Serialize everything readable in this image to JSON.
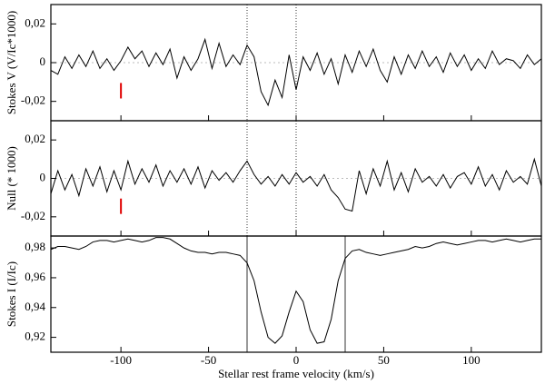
{
  "chart_data": [
    {
      "type": "line",
      "ylabel": "Stokes V  (V/Ic*1000)",
      "color": "#000000",
      "x": [
        -140,
        -136,
        -132,
        -128,
        -124,
        -120,
        -116,
        -112,
        -108,
        -104,
        -100,
        -96,
        -92,
        -88,
        -84,
        -80,
        -76,
        -72,
        -68,
        -64,
        -60,
        -56,
        -52,
        -48,
        -44,
        -40,
        -36,
        -32,
        -28,
        -24,
        -20,
        -16,
        -12,
        -8,
        -4,
        0,
        4,
        8,
        12,
        16,
        20,
        24,
        28,
        32,
        36,
        40,
        44,
        48,
        52,
        56,
        60,
        64,
        68,
        72,
        76,
        80,
        84,
        88,
        92,
        96,
        100,
        104,
        108,
        112,
        116,
        120,
        124,
        128,
        132,
        136,
        140
      ],
      "values": [
        -0.004,
        -0.006,
        0.003,
        -0.003,
        0.004,
        -0.002,
        0.006,
        -0.003,
        0.002,
        -0.004,
        0.001,
        0.008,
        0.002,
        0.006,
        -0.002,
        0.005,
        -0.001,
        0.007,
        -0.008,
        0.003,
        -0.004,
        0.002,
        0.012,
        -0.003,
        0.01,
        -0.002,
        0.004,
        -0.001,
        0.009,
        0.003,
        -0.015,
        -0.022,
        -0.009,
        -0.018,
        0.004,
        -0.014,
        0.003,
        -0.004,
        0.005,
        -0.006,
        0.002,
        -0.011,
        0.004,
        -0.005,
        0.006,
        -0.002,
        0.007,
        -0.004,
        -0.01,
        0.003,
        -0.006,
        0.004,
        -0.003,
        0.006,
        -0.002,
        0.003,
        -0.005,
        0.005,
        -0.002,
        0.004,
        -0.004,
        0.002,
        -0.003,
        0.006,
        -0.001,
        0.002,
        0.001,
        -0.003,
        0.004,
        -0.001,
        0.002
      ],
      "xlim": [
        -140,
        140
      ],
      "ylim": [
        -0.03,
        0.03
      ],
      "yticks": [
        {
          "value": 0.02,
          "label": "0,02"
        },
        0,
        {
          "value": -0.02,
          "label": "-0,02"
        }
      ],
      "zero_line": true,
      "vlines": [
        -28,
        0
      ],
      "vline_style": "dotted",
      "marker": {
        "x": -100,
        "y": [
          -0.0105,
          -0.0185
        ],
        "color": "#e00000"
      }
    },
    {
      "type": "line",
      "ylabel": "Null  (* 1000)",
      "color": "#000000",
      "x": [
        -140,
        -136,
        -132,
        -128,
        -124,
        -120,
        -116,
        -112,
        -108,
        -104,
        -100,
        -96,
        -92,
        -88,
        -84,
        -80,
        -76,
        -72,
        -68,
        -64,
        -60,
        -56,
        -52,
        -48,
        -44,
        -40,
        -36,
        -32,
        -28,
        -24,
        -20,
        -16,
        -12,
        -8,
        -4,
        0,
        4,
        8,
        12,
        16,
        20,
        24,
        28,
        32,
        36,
        40,
        44,
        48,
        52,
        56,
        60,
        64,
        68,
        72,
        76,
        80,
        84,
        88,
        92,
        96,
        100,
        104,
        108,
        112,
        116,
        120,
        124,
        128,
        132,
        136,
        140
      ],
      "values": [
        -0.008,
        0.004,
        -0.006,
        0.002,
        -0.009,
        0.005,
        -0.004,
        0.006,
        -0.007,
        0.004,
        -0.006,
        0.009,
        -0.003,
        0.005,
        -0.002,
        0.007,
        -0.004,
        0.004,
        -0.002,
        0.005,
        -0.003,
        0.006,
        -0.005,
        0.004,
        -0.001,
        0.003,
        -0.002,
        0.004,
        0.009,
        0.002,
        -0.003,
        0.001,
        -0.004,
        0.002,
        -0.003,
        0.003,
        -0.002,
        0.001,
        -0.004,
        0.002,
        -0.006,
        -0.01,
        -0.016,
        -0.017,
        0.004,
        -0.008,
        0.005,
        -0.004,
        0.009,
        -0.006,
        0.003,
        -0.007,
        0.005,
        -0.002,
        0.001,
        -0.004,
        0.002,
        -0.005,
        0.001,
        0.003,
        -0.003,
        0.006,
        -0.004,
        0.002,
        -0.006,
        0.004,
        -0.002,
        0.001,
        -0.003,
        0.01,
        -0.004
      ],
      "xlim": [
        -140,
        140
      ],
      "ylim": [
        -0.03,
        0.03
      ],
      "yticks": [
        {
          "value": 0.02,
          "label": "0,02"
        },
        0,
        {
          "value": -0.02,
          "label": "-0,02"
        }
      ],
      "zero_line": true,
      "vlines": [
        -28,
        0
      ],
      "vline_style": "dotted",
      "marker": {
        "x": -100,
        "y": [
          -0.0105,
          -0.0185
        ],
        "color": "#e00000"
      }
    },
    {
      "type": "line",
      "ylabel": "Stokes I  (I/Ic)",
      "xlabel": "Stellar rest frame velocity (km/s)",
      "color": "#000000",
      "x": [
        -140,
        -136,
        -132,
        -128,
        -124,
        -120,
        -116,
        -112,
        -108,
        -104,
        -100,
        -96,
        -92,
        -88,
        -84,
        -80,
        -76,
        -72,
        -68,
        -64,
        -60,
        -56,
        -52,
        -48,
        -44,
        -40,
        -36,
        -32,
        -28,
        -24,
        -20,
        -16,
        -12,
        -8,
        -4,
        0,
        4,
        8,
        12,
        16,
        20,
        24,
        28,
        32,
        36,
        40,
        44,
        48,
        52,
        56,
        60,
        64,
        68,
        72,
        76,
        80,
        84,
        88,
        92,
        96,
        100,
        104,
        108,
        112,
        116,
        120,
        124,
        128,
        132,
        136,
        140
      ],
      "values": [
        0.979,
        0.981,
        0.981,
        0.98,
        0.979,
        0.981,
        0.984,
        0.985,
        0.985,
        0.984,
        0.985,
        0.986,
        0.985,
        0.984,
        0.985,
        0.987,
        0.987,
        0.986,
        0.983,
        0.98,
        0.978,
        0.977,
        0.977,
        0.976,
        0.977,
        0.977,
        0.976,
        0.975,
        0.97,
        0.958,
        0.937,
        0.92,
        0.916,
        0.921,
        0.937,
        0.951,
        0.944,
        0.925,
        0.916,
        0.917,
        0.932,
        0.958,
        0.973,
        0.978,
        0.979,
        0.977,
        0.976,
        0.975,
        0.976,
        0.977,
        0.978,
        0.979,
        0.981,
        0.98,
        0.981,
        0.983,
        0.984,
        0.983,
        0.982,
        0.983,
        0.984,
        0.985,
        0.985,
        0.984,
        0.985,
        0.986,
        0.985,
        0.984,
        0.985,
        0.986,
        0.986
      ],
      "xlim": [
        -140,
        140
      ],
      "ylim": [
        0.91,
        0.988
      ],
      "xticks": [
        -100,
        -50,
        0,
        50,
        100
      ],
      "yticks": [
        {
          "value": 0.98,
          "label": "0,98"
        },
        {
          "value": 0.96,
          "label": "0,96"
        },
        {
          "value": 0.94,
          "label": "0,94"
        },
        {
          "value": 0.92,
          "label": "0,92"
        }
      ],
      "vlines": [
        -28,
        28
      ],
      "vline_style": "solid"
    }
  ]
}
